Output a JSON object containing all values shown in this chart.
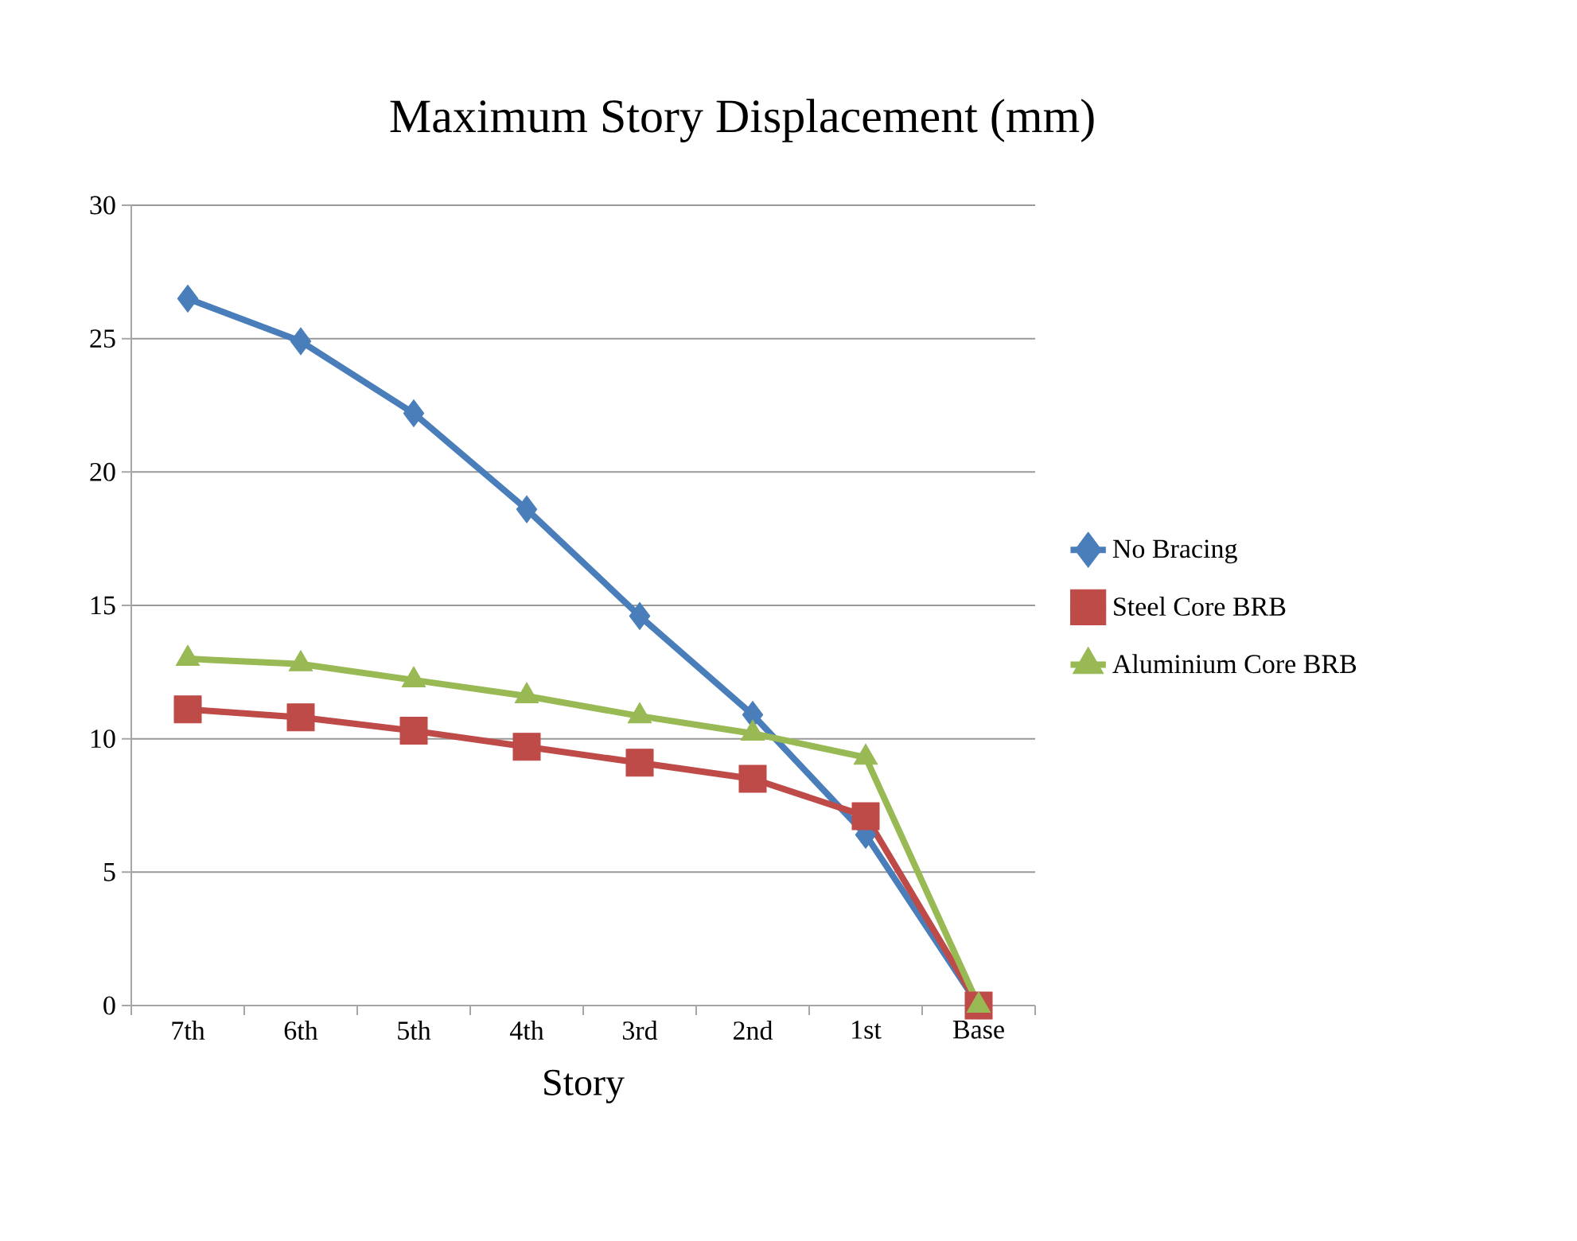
{
  "chart_data": {
    "type": "line",
    "title": "Maximum Story Displacement (mm)",
    "xlabel": "Story",
    "categories": [
      "7th",
      "6th",
      "5th",
      "4th",
      "3rd",
      "2nd",
      "1st",
      "Base"
    ],
    "series": [
      {
        "name": "No Bracing",
        "color": "#4a7ebb",
        "marker": "diamond",
        "values": [
          26.5,
          24.9,
          22.2,
          18.6,
          14.6,
          10.9,
          6.4,
          0
        ]
      },
      {
        "name": "Steel Core BRB",
        "color": "#be4b48",
        "marker": "square",
        "values": [
          11.1,
          10.8,
          10.3,
          9.7,
          9.1,
          8.5,
          7.1,
          0
        ]
      },
      {
        "name": "Aluminium Core BRB",
        "color": "#98b954",
        "marker": "triangle",
        "values": [
          13.0,
          12.8,
          12.2,
          11.6,
          10.85,
          10.2,
          9.3,
          0
        ]
      }
    ],
    "ylim": [
      0,
      30
    ],
    "yticks": [
      0,
      5,
      10,
      15,
      20,
      25,
      30
    ],
    "grid": "y",
    "legend": "right",
    "line_style": "solid"
  }
}
